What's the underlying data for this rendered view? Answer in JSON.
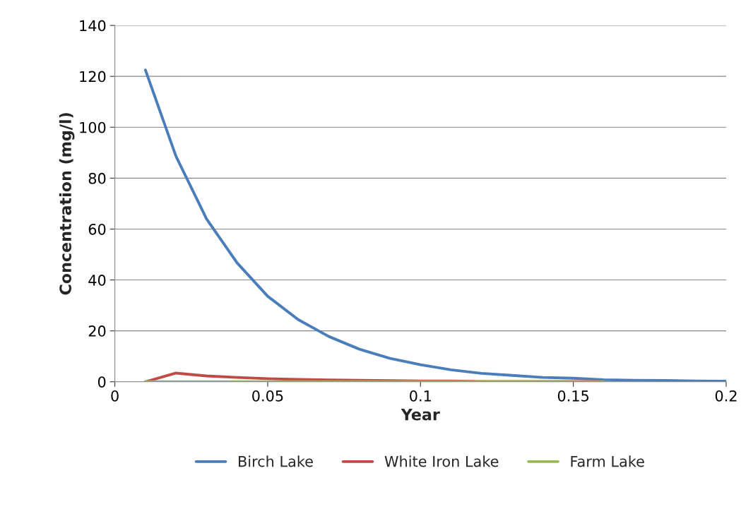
{
  "chart_data": {
    "type": "line",
    "xlabel": "Year",
    "ylabel": "Concentration (mg/l)",
    "x": [
      0.01,
      0.02,
      0.03,
      0.04,
      0.05,
      0.06,
      0.07,
      0.08,
      0.09,
      0.1,
      0.11,
      0.12,
      0.13,
      0.14,
      0.15,
      0.16,
      0.17,
      0.18,
      0.19,
      0.2
    ],
    "series": [
      {
        "name": "Birch Lake",
        "color": "#4a7ebb",
        "values": [
          122.5,
          88.6,
          64,
          46.7,
          33.6,
          24.4,
          17.8,
          12.8,
          9.2,
          6.7,
          4.7,
          3.3,
          2.5,
          1.7,
          1.4,
          0.8,
          0.6,
          0.5,
          0.3,
          0.2
        ]
      },
      {
        "name": "White Iron Lake",
        "color": "#be4b48",
        "values": [
          0,
          3.4,
          2.3,
          1.7,
          1.2,
          0.9,
          0.7,
          0.6,
          0.4,
          0.3,
          0.3,
          0.1,
          0.1,
          0.1,
          0.1,
          0.1,
          null,
          null,
          null,
          null
        ]
      },
      {
        "name": "Farm Lake",
        "color": "#98b954",
        "values": [
          0,
          0,
          0,
          0,
          0,
          0,
          0,
          0,
          0,
          0,
          0,
          0,
          0,
          0,
          0,
          0,
          null,
          null,
          null,
          null
        ]
      }
    ],
    "xlim": [
      0,
      0.2
    ],
    "xticks": [
      0,
      0.05,
      0.1,
      0.15,
      0.2
    ],
    "ylim": [
      0,
      140
    ],
    "yticks": [
      0,
      20,
      40,
      60,
      80,
      100,
      120,
      140
    ],
    "grid": "y",
    "legend": "bottom",
    "marker": "none",
    "line_style": "solid"
  }
}
